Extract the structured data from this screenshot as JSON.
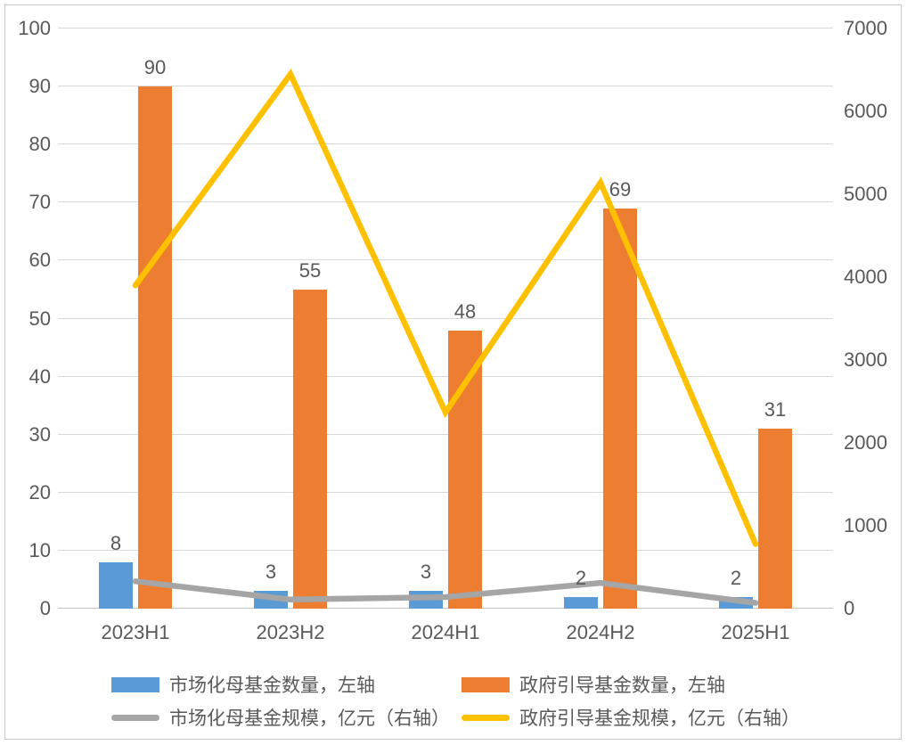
{
  "chart_data": {
    "type": "combo",
    "categories": [
      "2023H1",
      "2023H2",
      "2024H1",
      "2024H2",
      "2025H1"
    ],
    "series": [
      {
        "name": "市场化母基金数量，左轴",
        "type": "bar",
        "axis": "left",
        "color": "#5B9BD5",
        "values": [
          8,
          3,
          3,
          2,
          2
        ],
        "data_labels": true
      },
      {
        "name": "政府引导基金数量，左轴",
        "type": "bar",
        "axis": "left",
        "color": "#ED7D31",
        "values": [
          90,
          55,
          48,
          69,
          31
        ],
        "data_labels": true
      },
      {
        "name": "市场化母基金规模，亿元（右轴）",
        "type": "line",
        "axis": "right",
        "color": "#A5A5A5",
        "values": [
          330,
          110,
          140,
          310,
          70
        ],
        "data_labels": false
      },
      {
        "name": "政府引导基金规模，亿元（右轴）",
        "type": "line",
        "axis": "right",
        "color": "#FFC000",
        "values": [
          3900,
          6450,
          2370,
          5140,
          780
        ],
        "data_labels": false
      }
    ],
    "left_axis": {
      "min": 0,
      "max": 100,
      "ticks": [
        0,
        10,
        20,
        30,
        40,
        50,
        60,
        70,
        80,
        90,
        100
      ]
    },
    "right_axis": {
      "min": 0,
      "max": 7000,
      "ticks": [
        0,
        1000,
        2000,
        3000,
        4000,
        5000,
        6000,
        7000
      ]
    },
    "grid": true,
    "legend_position": "bottom",
    "title": "",
    "xlabel": "",
    "ylabel": ""
  },
  "colors": {
    "grid": "#D9D9D9",
    "zero_line": "#C3C3C3",
    "axis_text": "#595959",
    "data_label_text": "#595959",
    "frame_border": "#C9C9C9",
    "background": "#FFFFFF"
  }
}
